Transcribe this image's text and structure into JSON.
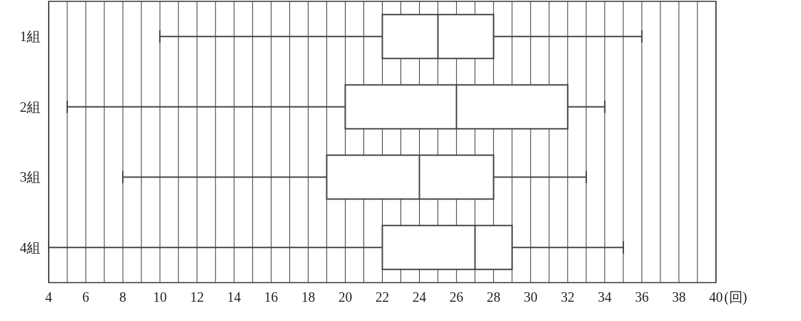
{
  "chart_data": {
    "type": "box",
    "orientation": "horizontal",
    "categories": [
      "1組",
      "2組",
      "3組",
      "4組"
    ],
    "xlabel": "(回)",
    "xlim": [
      4,
      40
    ],
    "grid": "x",
    "xticks": [
      4,
      {
        "value": 5,
        "label": null
      },
      6,
      {
        "value": 7,
        "label": null
      },
      8,
      {
        "value": 9,
        "label": null
      },
      10,
      {
        "value": 11,
        "label": null
      },
      12,
      {
        "value": 13,
        "label": null
      },
      14,
      {
        "value": 15,
        "label": null
      },
      16,
      {
        "value": 17,
        "label": null
      },
      18,
      {
        "value": 19,
        "label": null
      },
      20,
      {
        "value": 21,
        "label": null
      },
      22,
      {
        "value": 23,
        "label": null
      },
      24,
      {
        "value": 25,
        "label": null
      },
      26,
      {
        "value": 27,
        "label": null
      },
      28,
      {
        "value": 29,
        "label": null
      },
      30,
      {
        "value": 31,
        "label": null
      },
      32,
      {
        "value": 33,
        "label": null
      },
      34,
      {
        "value": 35,
        "label": null
      },
      36,
      {
        "value": 37,
        "label": null
      },
      38,
      {
        "value": 39,
        "label": null
      },
      40
    ],
    "boxes": [
      {
        "low": 10,
        "q1": 22,
        "median": 25,
        "q3": 28,
        "high": 36
      },
      {
        "low": 5,
        "q1": 20,
        "median": 26,
        "q3": 32,
        "high": 34
      },
      {
        "low": 8,
        "q1": 19,
        "median": 24,
        "q3": 28,
        "high": 33
      },
      {
        "low": 4,
        "q1": 22,
        "median": 27,
        "q3": 29,
        "high": 35
      }
    ]
  }
}
